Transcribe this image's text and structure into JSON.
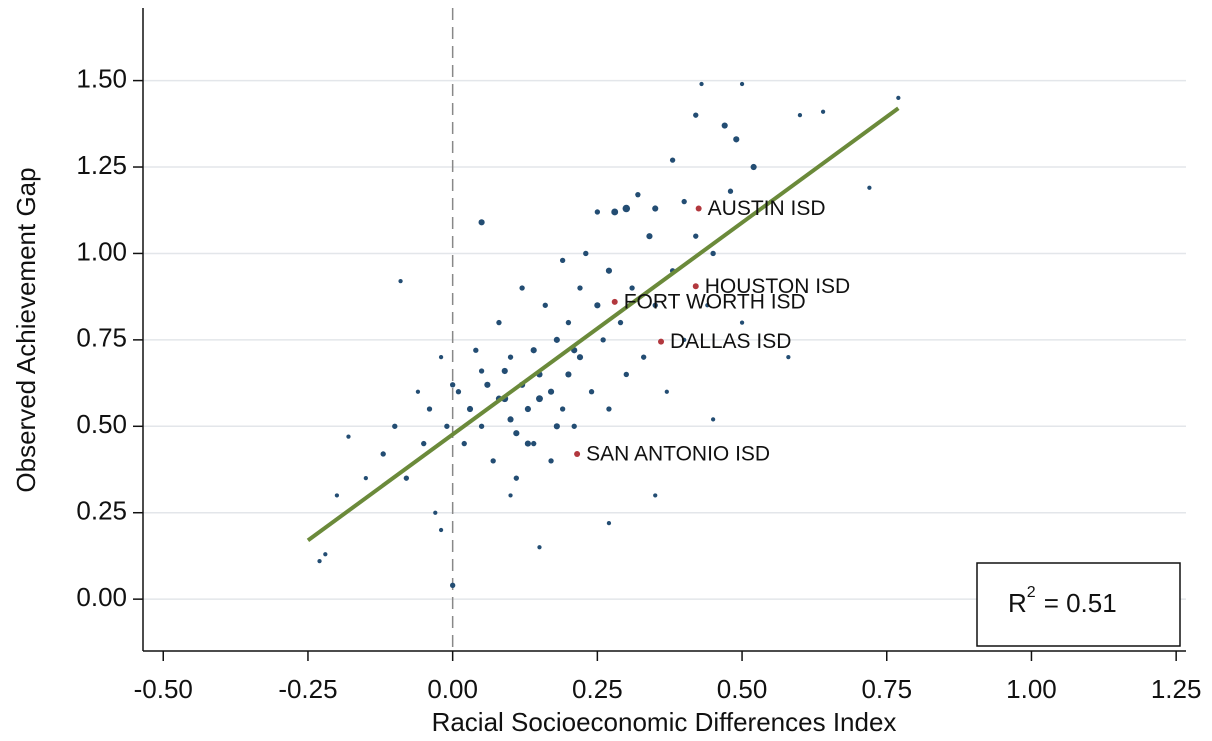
{
  "chart_data": {
    "type": "scatter",
    "xlabel": "Racial Socioeconomic Differences Index",
    "ylabel": "Observed Achievement Gap",
    "xlim": [
      -0.535,
      1.267
    ],
    "ylim": [
      -0.15,
      1.71
    ],
    "xticks": [
      {
        "value": -0.5,
        "label": "-0.50"
      },
      {
        "value": -0.25,
        "label": "-0.25"
      },
      {
        "value": 0,
        "label": "0.00"
      },
      {
        "value": 0.25,
        "label": "0.25"
      },
      {
        "value": 0.5,
        "label": "0.50"
      },
      {
        "value": 0.75,
        "label": "0.75"
      },
      {
        "value": 1,
        "label": "1.00"
      },
      {
        "value": 1.25,
        "label": "1.25"
      }
    ],
    "yticks": [
      {
        "value": 0,
        "label": "0.00"
      },
      {
        "value": 0.25,
        "label": "0.25"
      },
      {
        "value": 0.5,
        "label": "0.50"
      },
      {
        "value": 0.75,
        "label": "0.75"
      },
      {
        "value": 1,
        "label": "1.00"
      },
      {
        "value": 1.25,
        "label": "1.25"
      },
      {
        "value": 1.5,
        "label": "1.50"
      }
    ],
    "grid": true,
    "color": "#234d73",
    "x": [
      -0.23,
      -0.22,
      -0.2,
      -0.18,
      -0.15,
      -0.12,
      -0.1,
      -0.09,
      -0.08,
      -0.06,
      -0.05,
      -0.04,
      -0.03,
      -0.02,
      -0.01,
      0,
      0.01,
      0.02,
      0.03,
      0.04,
      0.05,
      0.05,
      0.06,
      0.07,
      0.08,
      0.08,
      0.09,
      0.1,
      0.1,
      0.11,
      0.12,
      0.12,
      0.13,
      0.14,
      0.14,
      0.15,
      0.15,
      0.16,
      0.17,
      0.17,
      0.18,
      0.19,
      0.19,
      0.2,
      0.2,
      0.21,
      0.22,
      0.22,
      0.23,
      0.24,
      0.25,
      0.25,
      0.26,
      0.27,
      0.27,
      0.28,
      0.29,
      0.3,
      0.3,
      0.31,
      0.32,
      0.33,
      0.34,
      0.35,
      0.35,
      0.37,
      0.38,
      0.38,
      0.4,
      0.4,
      0.42,
      0.42,
      0.44,
      0.45,
      0.47,
      0.48,
      0.49,
      0.5,
      0.5,
      0.52,
      0.55,
      0.58,
      0.6,
      0.64,
      0.72,
      0.77,
      0.27,
      0.45,
      0.35,
      0.1,
      -0.02,
      0.43,
      0.13,
      0.05,
      0.18,
      0.09,
      0.15,
      0.21,
      0.0,
      0.11
    ],
    "y": [
      0.11,
      0.13,
      0.3,
      0.47,
      0.35,
      0.42,
      0.5,
      0.92,
      0.35,
      0.6,
      0.45,
      0.55,
      0.25,
      0.7,
      0.5,
      0.04,
      0.6,
      0.45,
      0.55,
      0.72,
      1.09,
      0.5,
      0.62,
      0.4,
      0.58,
      0.8,
      0.66,
      0.52,
      0.7,
      0.35,
      0.62,
      0.9,
      0.55,
      0.72,
      0.45,
      0.65,
      0.15,
      0.85,
      0.6,
      0.4,
      0.75,
      0.98,
      0.55,
      0.8,
      0.65,
      0.5,
      0.9,
      0.7,
      1.0,
      0.6,
      0.85,
      1.12,
      0.75,
      0.55,
      0.95,
      1.12,
      0.8,
      1.13,
      0.65,
      0.9,
      1.17,
      0.7,
      1.05,
      0.85,
      1.13,
      0.6,
      1.27,
      0.95,
      1.15,
      0.75,
      1.05,
      1.4,
      0.85,
      1.0,
      1.37,
      1.18,
      1.33,
      1.49,
      0.8,
      1.25,
      1.15,
      0.7,
      1.4,
      1.41,
      1.19,
      1.45,
      0.22,
      0.52,
      0.3,
      0.3,
      0.2,
      1.49,
      0.45,
      0.66,
      0.5,
      0.58,
      0.58,
      0.72,
      0.62,
      0.48
    ],
    "sizes": [
      1,
      1,
      1,
      1,
      1,
      2,
      2,
      1,
      2,
      1,
      2,
      2,
      1,
      1,
      2,
      2,
      2,
      2,
      3,
      2,
      3,
      2,
      3,
      2,
      3,
      2,
      3,
      3,
      2,
      2,
      3,
      2,
      3,
      3,
      2,
      3,
      1,
      2,
      3,
      2,
      3,
      2,
      2,
      2,
      3,
      2,
      2,
      3,
      2,
      2,
      3,
      2,
      2,
      2,
      3,
      4,
      2,
      5,
      2,
      2,
      2,
      2,
      3,
      2,
      3,
      1,
      2,
      2,
      2,
      1,
      2,
      2,
      1,
      2,
      3,
      2,
      3,
      1,
      1,
      3,
      1,
      1,
      1,
      1,
      1,
      1,
      1,
      1,
      1,
      1,
      1,
      1,
      3,
      2,
      3,
      4,
      4,
      3,
      2,
      3
    ],
    "labeled_points": {
      "color": "#b2383e",
      "names": [
        "AUSTIN ISD",
        "HOUSTON ISD",
        "FORT WORTH ISD",
        "DALLAS ISD",
        "SAN ANTONIO ISD"
      ],
      "x": [
        0.425,
        0.42,
        0.28,
        0.36,
        0.215
      ],
      "y": [
        1.13,
        0.905,
        0.86,
        0.745,
        0.42
      ]
    },
    "fit_line": {
      "color": "#6b8a3a",
      "x": [
        -0.25,
        0.77
      ],
      "y": [
        0.17,
        1.42
      ]
    },
    "reference_x": 0,
    "r_squared": {
      "symbol": "R",
      "superscript": "2",
      "text": "= 0.51"
    }
  }
}
